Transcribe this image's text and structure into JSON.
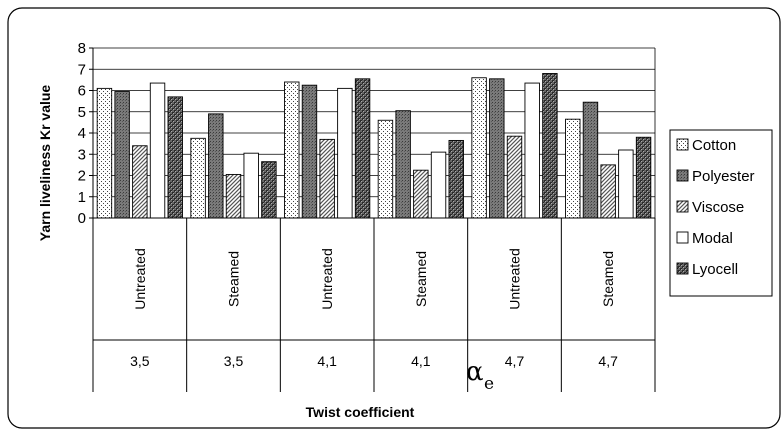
{
  "chart_data": {
    "type": "bar",
    "ylabel": "Yarn liveliness Kr value",
    "xlabel": "Twist coefficient",
    "xsymbol": "α",
    "xsymbol_sub": "e",
    "ylim": [
      0,
      8
    ],
    "yticks": [
      "0",
      "1",
      "2",
      "3",
      "4",
      "5",
      "6",
      "7",
      "8"
    ],
    "grid": "horizontal",
    "legend_position": "right",
    "categories": [
      "Untreated",
      "Steamed",
      "Untreated",
      "Steamed",
      "Untreated",
      "Steamed"
    ],
    "groups": [
      "3,5",
      "3,5",
      "4,1",
      "4,1",
      "4,7",
      "4,7"
    ],
    "series": [
      {
        "name": "Cotton",
        "values": [
          6.1,
          3.75,
          6.4,
          4.6,
          6.6,
          4.65
        ]
      },
      {
        "name": "Polyester",
        "values": [
          5.95,
          4.9,
          6.25,
          5.05,
          6.55,
          5.45
        ]
      },
      {
        "name": "Viscose",
        "values": [
          3.4,
          2.05,
          3.7,
          2.25,
          3.85,
          2.5
        ]
      },
      {
        "name": "Modal",
        "values": [
          6.35,
          3.05,
          6.1,
          3.1,
          6.35,
          3.2
        ]
      },
      {
        "name": "Lyocell",
        "values": [
          5.7,
          2.65,
          6.55,
          3.65,
          6.8,
          3.8
        ]
      }
    ]
  }
}
